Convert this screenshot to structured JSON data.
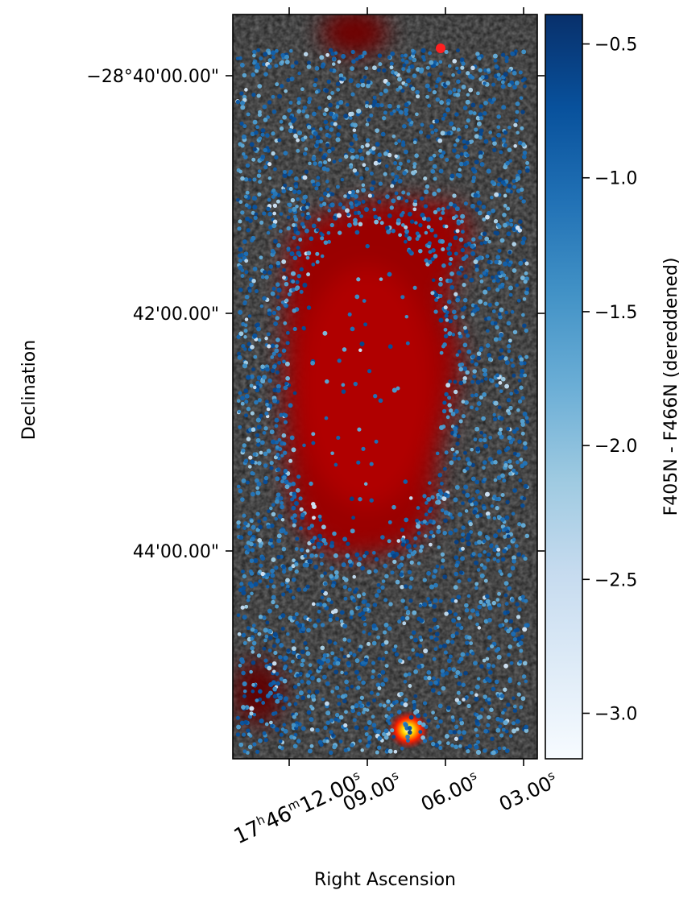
{
  "chart_data": {
    "type": "scatter",
    "background_image": "sky-image (grayscale field with red emission region)",
    "xlabel": "Right Ascension",
    "ylabel": "Declination",
    "x_ticks": [
      {
        "value": "17h46m12.00s",
        "main": "17",
        "h": "h",
        "mid": "46",
        "m": "m",
        "rest": "12.00",
        "s": "s"
      },
      {
        "value": "09.00s",
        "rest": "09.00",
        "s": "s"
      },
      {
        "value": "06.00s",
        "rest": "06.00",
        "s": "s"
      },
      {
        "value": "03.00s",
        "rest": "03.00",
        "s": "s"
      }
    ],
    "y_ticks": [
      "−28°40'00.00\"",
      "42'00.00\"",
      "44'00.00\""
    ],
    "colorbar": {
      "label": "F405N - F466N (dereddened)",
      "ticks": [
        "−0.5",
        "−1.0",
        "−1.5",
        "−2.0",
        "−2.5",
        "−3.0"
      ],
      "tick_values": [
        -0.5,
        -1.0,
        -1.5,
        -2.0,
        -2.5,
        -3.0
      ],
      "range": [
        -3.17,
        -0.39
      ],
      "colormap": "Blues",
      "color_top": "#08306b",
      "color_bottom": "#f7fbff"
    },
    "points_description": "stars colored by F405N - F466N color, clustered around a dark cloud",
    "colors": {
      "emission_red": "#c00000",
      "hot_spot": "#ffd000",
      "background_gray": "#3a3a3a"
    }
  }
}
